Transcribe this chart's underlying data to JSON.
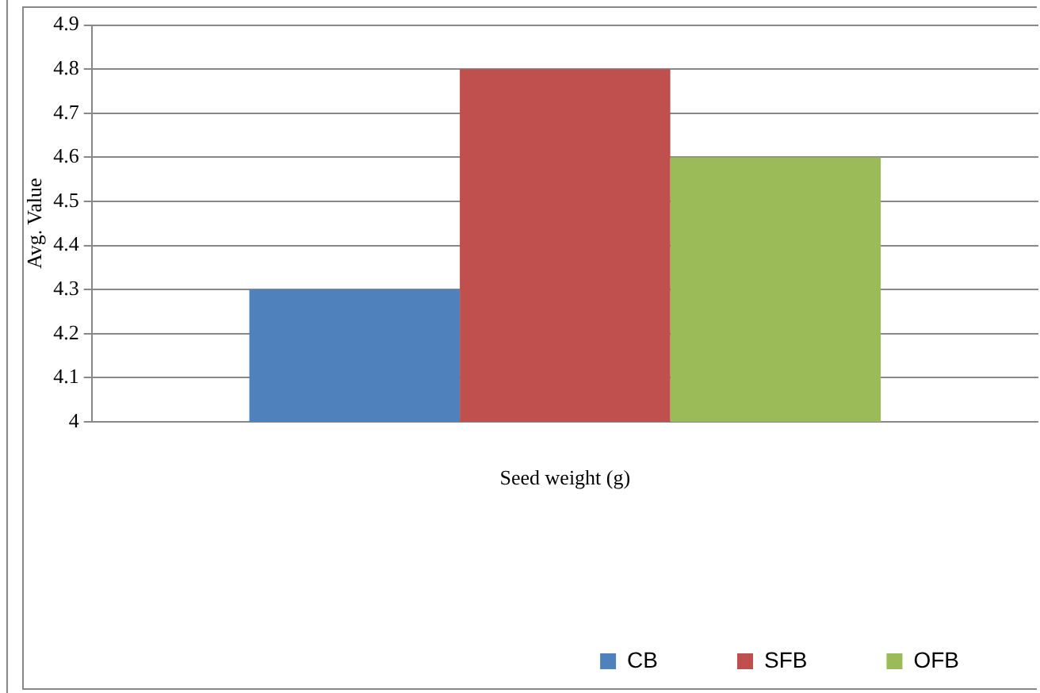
{
  "chart_data": {
    "type": "bar",
    "xlabel": "Seed weight (g)",
    "ylabel": "Avg. Value",
    "categories": [
      null
    ],
    "series": [
      {
        "name": "CB",
        "color": "#4f81bd",
        "values": [
          4.3
        ]
      },
      {
        "name": "SFB",
        "color": "#c0504d",
        "values": [
          4.8
        ]
      },
      {
        "name": "OFB",
        "color": "#9bbb59",
        "values": [
          4.6
        ]
      }
    ],
    "ylim": [
      4,
      4.9
    ],
    "yticks": [
      4,
      4.1,
      4.2,
      4.3,
      4.4,
      4.5,
      4.6,
      4.7,
      4.8,
      4.9
    ],
    "grid": "y",
    "legend": "bottom right"
  }
}
